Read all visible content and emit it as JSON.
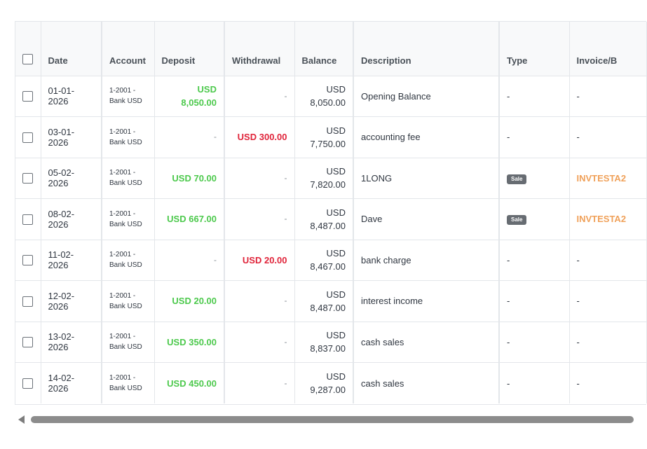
{
  "table": {
    "headers": {
      "date": "Date",
      "account": "Account",
      "deposit": "Deposit",
      "withdrawal": "Withdrawal",
      "balance": "Balance",
      "description": "Description",
      "type": "Type",
      "invoice": "Invoice/B"
    },
    "rows": [
      {
        "date": "01-01-2026",
        "account_code": "1-2001 -",
        "account_name": "Bank USD",
        "deposit_currency": "USD",
        "deposit_amount": "8,050.00",
        "withdrawal": "-",
        "balance_currency": "USD",
        "balance_amount": "8,050.00",
        "description": "Opening Balance",
        "type": "-",
        "invoice": "-"
      },
      {
        "date": "03-01-2026",
        "account_code": "1-2001 -",
        "account_name": "Bank USD",
        "deposit": "-",
        "withdrawal": "USD 300.00",
        "balance_currency": "USD",
        "balance_amount": "7,750.00",
        "description": "accounting fee",
        "type": "-",
        "invoice": "-"
      },
      {
        "date": "05-02-2026",
        "account_code": "1-2001 -",
        "account_name": "Bank USD",
        "deposit": "USD 70.00",
        "withdrawal": "-",
        "balance_currency": "USD",
        "balance_amount": "7,820.00",
        "description": "1LONG",
        "type": "Sale",
        "invoice": "INVTESTA2"
      },
      {
        "date": "08-02-2026",
        "account_code": "1-2001 -",
        "account_name": "Bank USD",
        "deposit": "USD 667.00",
        "withdrawal": "-",
        "balance_currency": "USD",
        "balance_amount": "8,487.00",
        "description": "Dave",
        "type": "Sale",
        "invoice": "INVTESTA2"
      },
      {
        "date": "11-02-2026",
        "account_code": "1-2001 -",
        "account_name": "Bank USD",
        "deposit": "-",
        "withdrawal": "USD 20.00",
        "balance_currency": "USD",
        "balance_amount": "8,467.00",
        "description": "bank charge",
        "type": "-",
        "invoice": "-"
      },
      {
        "date": "12-02-2026",
        "account_code": "1-2001 -",
        "account_name": "Bank USD",
        "deposit": "USD 20.00",
        "withdrawal": "-",
        "balance_currency": "USD",
        "balance_amount": "8,487.00",
        "description": "interest income",
        "type": "-",
        "invoice": "-"
      },
      {
        "date": "13-02-2026",
        "account_code": "1-2001 -",
        "account_name": "Bank USD",
        "deposit": "USD 350.00",
        "withdrawal": "-",
        "balance_currency": "USD",
        "balance_amount": "8,837.00",
        "description": "cash sales",
        "type": "-",
        "invoice": "-"
      },
      {
        "date": "14-02-2026",
        "account_code": "1-2001 -",
        "account_name": "Bank USD",
        "deposit": "USD 450.00",
        "withdrawal": "-",
        "balance_currency": "USD",
        "balance_amount": "9,287.00",
        "description": "cash sales",
        "type": "-",
        "invoice": "-"
      }
    ]
  },
  "icons": {
    "scroll_left": "chevron-left-icon"
  },
  "colors": {
    "deposit": "#4cc94c",
    "withdrawal": "#e0243a",
    "invoice_link": "#f0a15a",
    "badge": "#676c72",
    "header_bg": "#f8f9fa",
    "border": "#e3e6ea"
  }
}
